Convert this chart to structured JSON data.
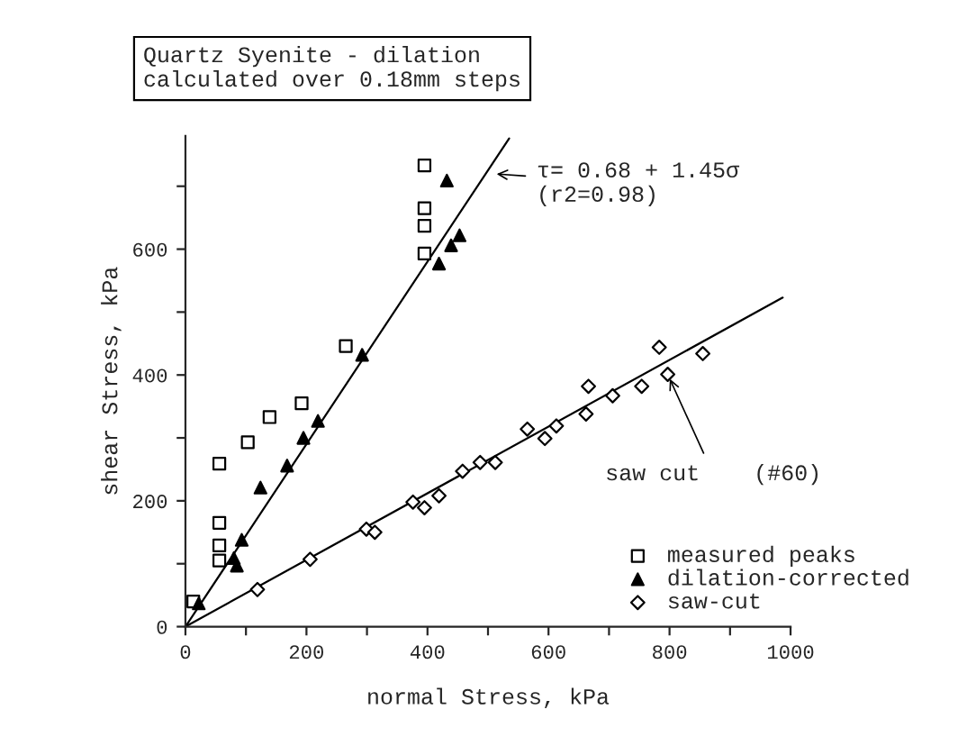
{
  "chart_data": {
    "type": "scatter",
    "title": "Quartz Syenite - dilation\ncalculated over 0.18mm steps",
    "xlabel": "normal Stress, kPa",
    "ylabel": "shear Stress, kPa",
    "xlim": [
      0,
      1000
    ],
    "ylim": [
      0,
      780
    ],
    "xticks": [
      0,
      {
        "value": 100,
        "label": null
      },
      200,
      {
        "value": 300,
        "label": null
      },
      400,
      {
        "value": 500,
        "label": null
      },
      600,
      {
        "value": 700,
        "label": null
      },
      800,
      {
        "value": 900,
        "label": null
      },
      1000
    ],
    "yticks": [
      0,
      {
        "value": 100,
        "label": null
      },
      200,
      {
        "value": 300,
        "label": null
      },
      400,
      {
        "value": 500,
        "label": null
      },
      600,
      {
        "value": 700,
        "label": null
      }
    ],
    "grid": false,
    "legend": "bottom right",
    "series": [
      {
        "name": "measured peaks",
        "color": "#000000",
        "marker": "square",
        "x": [
          395,
          395,
          395,
          395,
          265,
          192,
          139,
          103,
          56,
          56,
          56,
          56,
          13
        ],
        "values": [
          733,
          665,
          637,
          593,
          446,
          355,
          333,
          293,
          259,
          165,
          129,
          105,
          40
        ]
      },
      {
        "name": "dilation-corrected",
        "color": "#000000",
        "marker": "triangle",
        "x": [
          432,
          453,
          439,
          419,
          292,
          219,
          195,
          168,
          124,
          93,
          80,
          85,
          22
        ],
        "values": [
          709,
          622,
          606,
          577,
          432,
          327,
          300,
          256,
          221,
          138,
          109,
          97,
          37
        ]
      },
      {
        "name": "saw-cut",
        "color": "#000000",
        "marker": "diamond",
        "x": [
          119,
          206,
          299,
          313,
          376,
          395,
          419,
          458,
          487,
          512,
          565,
          594,
          613,
          662,
          666,
          706,
          754,
          783,
          797,
          855
        ],
        "values": [
          59,
          107,
          155,
          150,
          198,
          189,
          208,
          247,
          261,
          261,
          314,
          299,
          319,
          338,
          382,
          367,
          382,
          444,
          401,
          434
        ]
      },
      {
        "type": "line",
        "color": "#000000",
        "marker": "none",
        "x": [
          0,
          535
        ],
        "values": [
          0,
          776
        ]
      },
      {
        "type": "line",
        "color": "#000000",
        "marker": "none",
        "x": [
          0,
          987
        ],
        "values": [
          0,
          523
        ]
      }
    ],
    "annotations": [
      {
        "text": "τ= 0.68 + 1.45σ\n(r2=0.98)",
        "x": 506,
        "y": 720
      },
      {
        "text": "saw cut    (#60)",
        "x": 797,
        "y": 401
      }
    ]
  }
}
